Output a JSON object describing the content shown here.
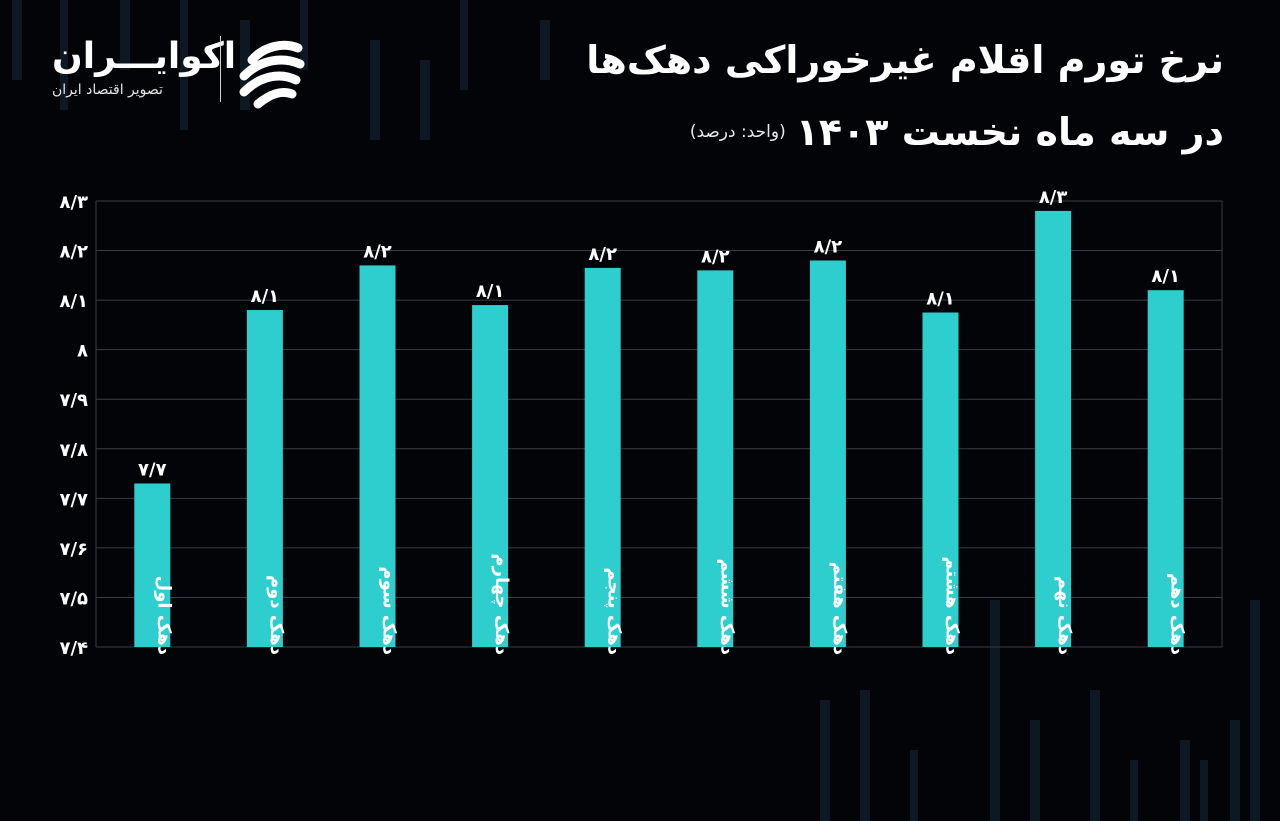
{
  "header": {
    "title": "نرخ تورم اقلام غیرخوراکی دهک‌ها",
    "subtitle": "در سه ماه نخست ۱۴۰۳",
    "unit": "(واحد: درصد)"
  },
  "brand": {
    "name": "اکوایـــران",
    "tagline": "تصویر اقتصاد ایران"
  },
  "colors": {
    "background": "#030407",
    "bar": "#2ecece",
    "grid": "#3a3d44",
    "text": "#ffffff",
    "candles": "#0c1822"
  },
  "chart_data": {
    "type": "bar",
    "categories": [
      "دهک اول",
      "دهک دوم",
      "دهک سوم",
      "دهک چهارم",
      "دهک پنجم",
      "دهک ششم",
      "دهک هفتم",
      "دهک هشتم",
      "دهک نهم",
      "دهک دهم"
    ],
    "values": [
      7.73,
      8.08,
      8.17,
      8.09,
      8.165,
      8.16,
      8.18,
      8.075,
      8.28,
      8.12
    ],
    "data_labels": [
      "۷/۷",
      "۸/۱",
      "۸/۲",
      "۸/۱",
      "۸/۲",
      "۸/۲",
      "۸/۲",
      "۸/۱",
      "۸/۳",
      "۸/۱"
    ],
    "ylim": [
      7.4,
      8.3
    ],
    "yticks": [
      7.4,
      7.5,
      7.6,
      7.7,
      7.8,
      7.9,
      8.0,
      8.1,
      8.2,
      8.3
    ],
    "ytick_labels": [
      "۷/۴",
      "۷/۵",
      "۷/۶",
      "۷/۷",
      "۷/۸",
      "۷/۹",
      "۸",
      "۸/۱",
      "۸/۲",
      "۸/۳"
    ],
    "grid": true,
    "legend": "none"
  }
}
